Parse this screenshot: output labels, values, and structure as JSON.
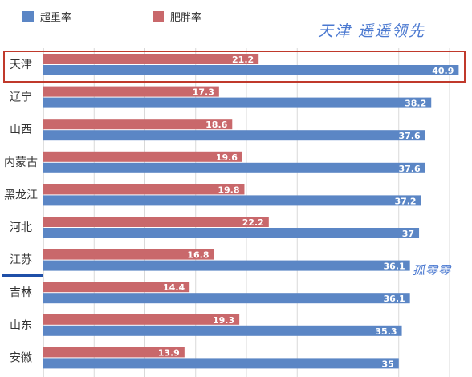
{
  "chart_data": {
    "type": "bar",
    "orientation": "horizontal",
    "categories": [
      "天津",
      "辽宁",
      "山西",
      "内蒙古",
      "黑龙江",
      "河北",
      "江苏",
      "吉林",
      "山东",
      "安徽"
    ],
    "series": [
      {
        "name": "肥胖率",
        "values": [
          21.2,
          17.3,
          18.6,
          19.6,
          19.8,
          22.2,
          16.8,
          14.4,
          19.3,
          13.9
        ],
        "color": "#c9686b"
      },
      {
        "name": "超重率",
        "values": [
          40.9,
          38.2,
          37.6,
          37.6,
          37.2,
          37,
          36.1,
          36.1,
          35.3,
          35
        ],
        "color": "#5b86c5"
      }
    ],
    "legend": {
      "position": "top-left",
      "order": [
        "超重率",
        "肥胖率"
      ]
    },
    "xlim": [
      0,
      45
    ],
    "grid": true,
    "gridline_color": "#d9d9d9"
  },
  "annotations": {
    "headline": "天津  遥遥领先",
    "side_note": "孤零零",
    "highlight_color": "#c0392b",
    "text_color": "#4a78d0"
  }
}
